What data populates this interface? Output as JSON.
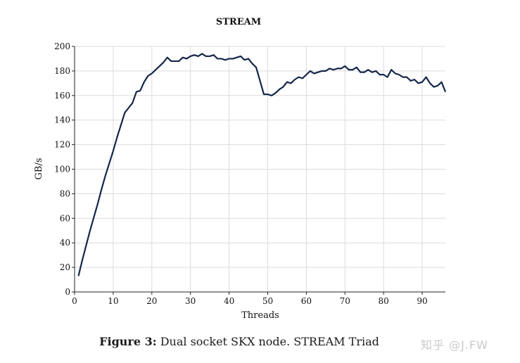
{
  "chart_data": {
    "type": "line",
    "title": "STREAM",
    "xlabel": "Threads",
    "ylabel": "GB/s",
    "xlim": [
      0,
      96
    ],
    "ylim": [
      0,
      200
    ],
    "xticks": [
      0,
      10,
      20,
      30,
      40,
      50,
      60,
      70,
      80,
      90
    ],
    "yticks": [
      0,
      20,
      40,
      60,
      80,
      100,
      120,
      140,
      160,
      180,
      200
    ],
    "grid": true,
    "line_color": "#14264a",
    "series": [
      {
        "x": [
          1,
          2,
          3,
          4,
          5,
          6,
          7,
          8,
          9,
          10,
          11,
          12,
          13,
          14,
          15,
          16,
          17,
          18,
          19,
          20,
          21,
          22,
          23,
          24,
          25,
          26,
          27,
          28,
          29,
          30,
          31,
          32,
          33,
          34,
          35,
          36,
          37,
          38,
          39,
          40,
          41,
          42,
          43,
          44,
          45,
          46,
          47,
          48,
          49,
          50,
          51,
          52,
          53,
          54,
          55,
          56,
          57,
          58,
          59,
          60,
          61,
          62,
          63,
          64,
          65,
          66,
          67,
          68,
          69,
          70,
          71,
          72,
          73,
          74,
          75,
          76,
          77,
          78,
          79,
          80,
          81,
          82,
          83,
          84,
          85,
          86,
          87,
          88,
          89,
          90,
          91,
          92,
          93,
          94,
          95,
          96
        ],
        "values": [
          13,
          26,
          38,
          50,
          61,
          72,
          84,
          95,
          105,
          115,
          126,
          136,
          146,
          150,
          154,
          163,
          164,
          171,
          176,
          178,
          181,
          184,
          187,
          191,
          188,
          188,
          188,
          191,
          190,
          192,
          193,
          192,
          194,
          192,
          192,
          193,
          190,
          190,
          189,
          190,
          190,
          191,
          192,
          189,
          190,
          186,
          183,
          172,
          161,
          161,
          160,
          162,
          165,
          167,
          171,
          170,
          173,
          175,
          174,
          177,
          180,
          178,
          179,
          180,
          180,
          182,
          181,
          182,
          182,
          184,
          181,
          181,
          183,
          179,
          179,
          181,
          179,
          180,
          177,
          177,
          175,
          181,
          178,
          177,
          175,
          175,
          172,
          173,
          170,
          171,
          175,
          170,
          167,
          168,
          171,
          163
        ]
      }
    ]
  },
  "caption": {
    "label": "Figure 3:",
    "text": " Dual socket SKX node. STREAM Triad"
  },
  "watermark": "知乎 @J.FW"
}
